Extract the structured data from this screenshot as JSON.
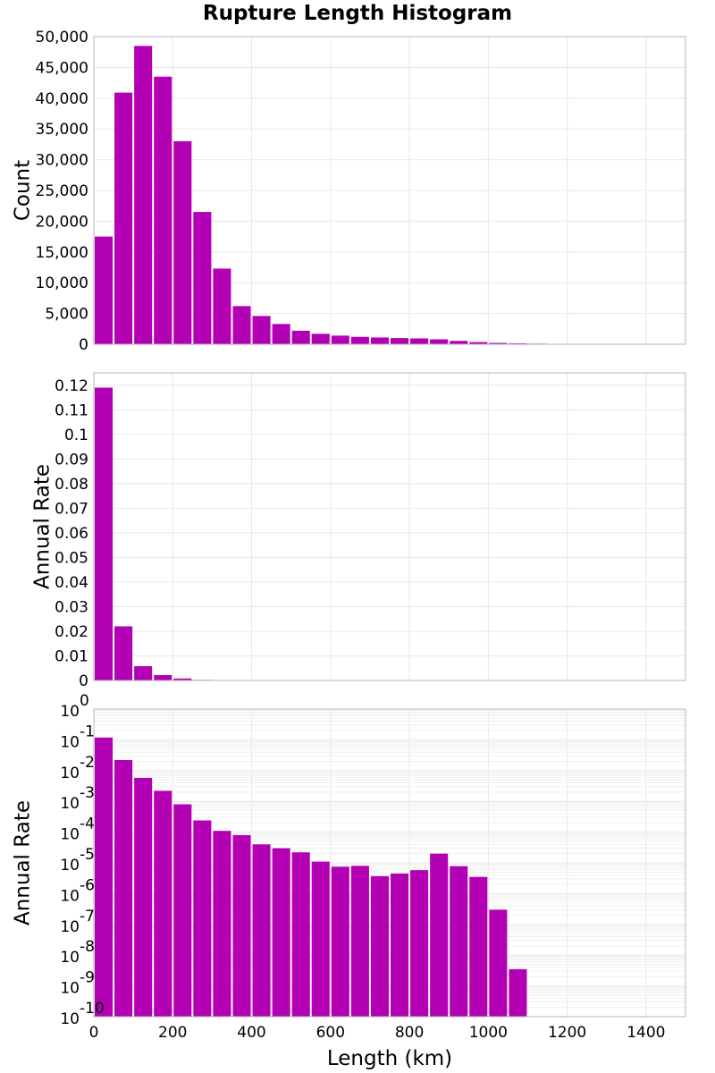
{
  "title": "Rupture Length Histogram",
  "colors": {
    "bar": "#b400b4",
    "frame": "#b4b4b4",
    "grid": "#e8e8e8"
  },
  "chart_data": [
    {
      "type": "bar",
      "panel": "top",
      "ylabel": "Count",
      "xlim": [
        0,
        1500
      ],
      "ylim": [
        0,
        50000
      ],
      "yticks": [
        0,
        5000,
        10000,
        15000,
        20000,
        25000,
        30000,
        35000,
        40000,
        45000,
        50000
      ],
      "ytick_labels": [
        "0",
        "5,000",
        "10,000",
        "15,000",
        "20,000",
        "25,000",
        "30,000",
        "35,000",
        "40,000",
        "45,000",
        "50,000"
      ],
      "bin_width": 50,
      "x": [
        25,
        75,
        125,
        175,
        225,
        275,
        325,
        375,
        425,
        475,
        525,
        575,
        625,
        675,
        725,
        775,
        825,
        875,
        925,
        975,
        1025,
        1075,
        1125,
        1175,
        1225,
        1275,
        1325,
        1375,
        1425,
        1475
      ],
      "values": [
        17500,
        40900,
        48500,
        43500,
        33000,
        21500,
        12300,
        6200,
        4600,
        3300,
        2200,
        1700,
        1400,
        1200,
        1100,
        1000,
        950,
        800,
        550,
        350,
        220,
        150,
        100,
        70,
        50,
        30,
        20,
        10,
        5,
        3
      ]
    },
    {
      "type": "bar",
      "panel": "middle",
      "ylabel": "Annual Rate",
      "xlim": [
        0,
        1500
      ],
      "ylim": [
        0,
        0.125
      ],
      "yticks": [
        0,
        0.01,
        0.02,
        0.03,
        0.04,
        0.05,
        0.06,
        0.07,
        0.08,
        0.09,
        0.1,
        0.11,
        0.12
      ],
      "ytick_labels": [
        "0",
        "0.01",
        "0.02",
        "0.03",
        "0.04",
        "0.05",
        "0.06",
        "0.07",
        "0.08",
        "0.09",
        "0.1",
        "0.11",
        "0.12"
      ],
      "bin_width": 50,
      "x": [
        25,
        75,
        125,
        175,
        225,
        275,
        325,
        375,
        425,
        475,
        525,
        575,
        625,
        675,
        725,
        775,
        825,
        875,
        925,
        975,
        1025,
        1075
      ],
      "values": [
        0.119,
        0.022,
        0.0058,
        0.0022,
        0.0008,
        0.00024,
        0.00011,
        8e-05,
        4e-05,
        3e-05,
        2.2e-05,
        1.1e-05,
        7.5e-06,
        8e-06,
        3.7e-06,
        4.5e-06,
        5.8e-06,
        2e-05,
        7.8e-06,
        3.5e-06,
        3e-07,
        3.5e-09
      ]
    },
    {
      "type": "bar",
      "panel": "bottom",
      "ylabel": "Annual Rate",
      "xlabel": "Length (km)",
      "yscale": "log",
      "xlim": [
        0,
        1500
      ],
      "ylim": [
        1e-10,
        1
      ],
      "xticks": [
        0,
        200,
        400,
        600,
        800,
        1000,
        1200,
        1400
      ],
      "xtick_labels": [
        "0",
        "200",
        "400",
        "600",
        "800",
        "1000",
        "1200",
        "1400"
      ],
      "yticks": [
        1,
        0.1,
        0.01,
        0.001,
        0.0001,
        1e-05,
        1e-06,
        1e-07,
        1e-08,
        1e-09,
        1e-10
      ],
      "ytick_labels": [
        {
          "base": "10",
          "exp": "0"
        },
        {
          "base": "10",
          "exp": "-1"
        },
        {
          "base": "10",
          "exp": "-2"
        },
        {
          "base": "10",
          "exp": "-3"
        },
        {
          "base": "10",
          "exp": "-4"
        },
        {
          "base": "10",
          "exp": "-5"
        },
        {
          "base": "10",
          "exp": "-6"
        },
        {
          "base": "10",
          "exp": "-7"
        },
        {
          "base": "10",
          "exp": "-8"
        },
        {
          "base": "10",
          "exp": "-9"
        },
        {
          "base": "10",
          "exp": "-10"
        }
      ],
      "bin_width": 50,
      "x": [
        25,
        75,
        125,
        175,
        225,
        275,
        325,
        375,
        425,
        475,
        525,
        575,
        625,
        675,
        725,
        775,
        825,
        875,
        925,
        975,
        1025,
        1075
      ],
      "values": [
        0.119,
        0.022,
        0.0058,
        0.0022,
        0.0008,
        0.00024,
        0.00011,
        8e-05,
        4e-05,
        3e-05,
        2.2e-05,
        1.1e-05,
        7.5e-06,
        8e-06,
        3.7e-06,
        4.5e-06,
        5.8e-06,
        2e-05,
        7.8e-06,
        3.5e-06,
        3e-07,
        3.5e-09
      ]
    }
  ]
}
